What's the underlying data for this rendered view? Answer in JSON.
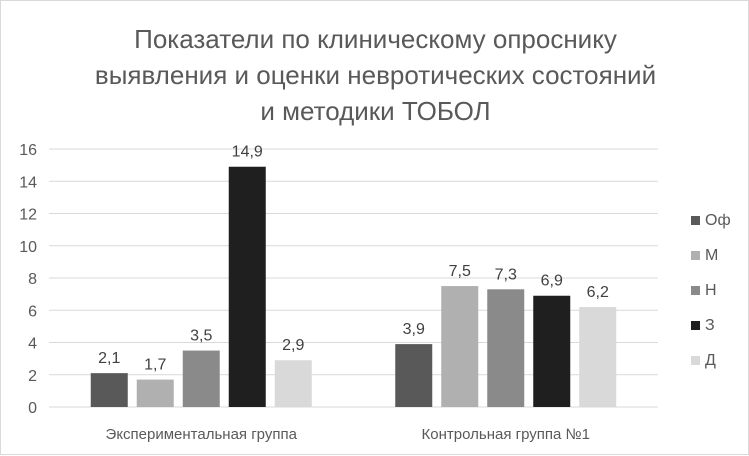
{
  "chart_data": {
    "type": "bar",
    "title_lines": [
      "Показатели по клиническому опроснику",
      "выявления и оценки невротических состояний",
      "и методики ТОБОЛ"
    ],
    "categories": [
      "Экспериментальная группа",
      "Контрольная группа №1"
    ],
    "series": [
      {
        "name": "Оф",
        "values": [
          2.1,
          3.9
        ],
        "labels": [
          "2,1",
          "3,9"
        ],
        "color": "#595959"
      },
      {
        "name": "М",
        "values": [
          1.7,
          7.5
        ],
        "labels": [
          "1,7",
          "7,5"
        ],
        "color": "#b0b0b0"
      },
      {
        "name": "Н",
        "values": [
          3.5,
          7.3
        ],
        "labels": [
          "3,5",
          "7,3"
        ],
        "color": "#8a8a8a"
      },
      {
        "name": "З",
        "values": [
          14.9,
          6.9
        ],
        "labels": [
          "14,9",
          "6,9"
        ],
        "color": "#1f1f1f"
      },
      {
        "name": "Д",
        "values": [
          2.9,
          6.2
        ],
        "labels": [
          "2,9",
          "6,2"
        ],
        "color": "#d9d9d9"
      }
    ],
    "ylim": [
      0,
      16
    ],
    "yticks": [
      0,
      2,
      4,
      6,
      8,
      10,
      12,
      14,
      16
    ],
    "grid": true,
    "legend_position": "right"
  }
}
